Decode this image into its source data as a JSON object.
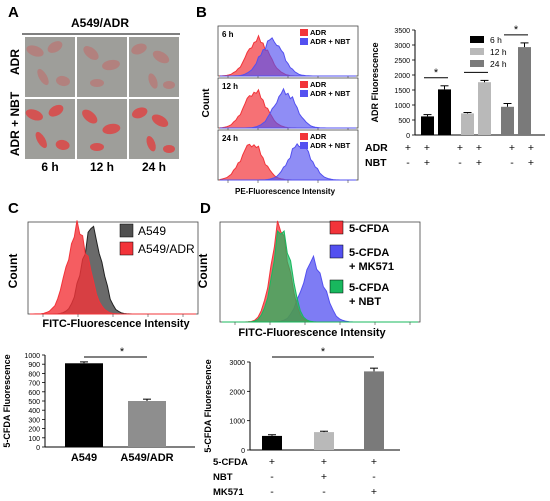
{
  "panels": {
    "A": {
      "letter": "A",
      "title": "A549/ADR",
      "rows": [
        "ADR",
        "ADR + NBT"
      ],
      "cols": [
        "6 h",
        "12 h",
        "24 h"
      ]
    },
    "B": {
      "letter": "B",
      "hist_ylabel": "Count",
      "hist_xlabel": "PE-Fluorescence Intensity",
      "hist_times": [
        "6 h",
        "12 h",
        "24 h"
      ],
      "hist_legend": [
        "ADR",
        "ADR + NBT"
      ],
      "cond_rows": [
        {
          "label": "ADR",
          "signs": [
            "+",
            "+",
            "+",
            "+",
            "+",
            "+"
          ]
        },
        {
          "label": "NBT",
          "signs": [
            "-",
            "+",
            "-",
            "+",
            "-",
            "+"
          ]
        }
      ]
    },
    "C": {
      "letter": "C",
      "hist_ylabel": "Count",
      "hist_xlabel": "FITC-Fluorescence Intensity",
      "hist_legend": [
        "A549",
        "A549/ADR"
      ]
    },
    "D": {
      "letter": "D",
      "hist_ylabel": "Count",
      "hist_xlabel": "FITC-Fluorescence Intensity",
      "hist_legend": [
        "5-CFDA",
        "5-CFDA\n+ MK571",
        "5-CFDA\n+ NBT"
      ],
      "cond_rows": [
        {
          "label": "5-CFDA",
          "signs": [
            "+",
            "+",
            "+"
          ]
        },
        {
          "label": "NBT",
          "signs": [
            "-",
            "+",
            "-"
          ]
        },
        {
          "label": "MK571",
          "signs": [
            "-",
            "-",
            "+"
          ]
        }
      ]
    }
  },
  "colors": {
    "red": "#f2343a",
    "blue": "#5350f0",
    "green": "#18b85e",
    "purple": "#8a3ea8",
    "dark": "#505050",
    "black": "#000000",
    "gray_light": "#b9b9b9",
    "gray_mid": "#8e8e8e",
    "gray_dark": "#7a7a7a",
    "micro_bg": "#9e9e9a",
    "cell": "#d84a4a"
  },
  "chart_data": [
    {
      "id": "B",
      "type": "bar",
      "ylabel": "ADR Fluorescence",
      "ylim": [
        0,
        3500
      ],
      "yticks": [
        0,
        500,
        1000,
        1500,
        2000,
        2500,
        3000,
        3500
      ],
      "legend": [
        "6 h",
        "12 h",
        "24 h"
      ],
      "legend_colors": [
        "#000000",
        "#b9b9b9",
        "#7a7a7a"
      ],
      "groups": [
        {
          "name": "6 h",
          "values": [
            620,
            1520
          ],
          "errors": [
            60,
            120
          ]
        },
        {
          "name": "12 h",
          "values": [
            720,
            1760
          ],
          "errors": [
            30,
            60
          ]
        },
        {
          "name": "24 h",
          "values": [
            940,
            2930
          ],
          "errors": [
            110,
            140
          ]
        }
      ],
      "significance": [
        "*",
        "*",
        "*"
      ]
    },
    {
      "id": "C",
      "type": "bar",
      "ylabel": "5-CFDA Fluorescence",
      "ylim": [
        0,
        1000
      ],
      "yticks": [
        0,
        100,
        200,
        300,
        400,
        500,
        600,
        700,
        800,
        900,
        1000
      ],
      "categories": [
        "A549",
        "A549/ADR"
      ],
      "values": [
        910,
        500
      ],
      "errors": [
        15,
        20
      ],
      "bar_colors": [
        "#000000",
        "#8e8e8e"
      ],
      "significance": "*"
    },
    {
      "id": "D",
      "type": "bar",
      "ylabel": "5-CFDA Fluorescence",
      "ylim": [
        0,
        3000
      ],
      "yticks": [
        0,
        1000,
        2000,
        3000
      ],
      "categories": [
        "5-CFDA",
        "5-CFDA + NBT",
        "5-CFDA + MK571"
      ],
      "values": [
        480,
        610,
        2680
      ],
      "errors": [
        40,
        30,
        110
      ],
      "bar_colors": [
        "#000000",
        "#b9b9b9",
        "#7a7a7a"
      ],
      "significance": "*"
    }
  ]
}
